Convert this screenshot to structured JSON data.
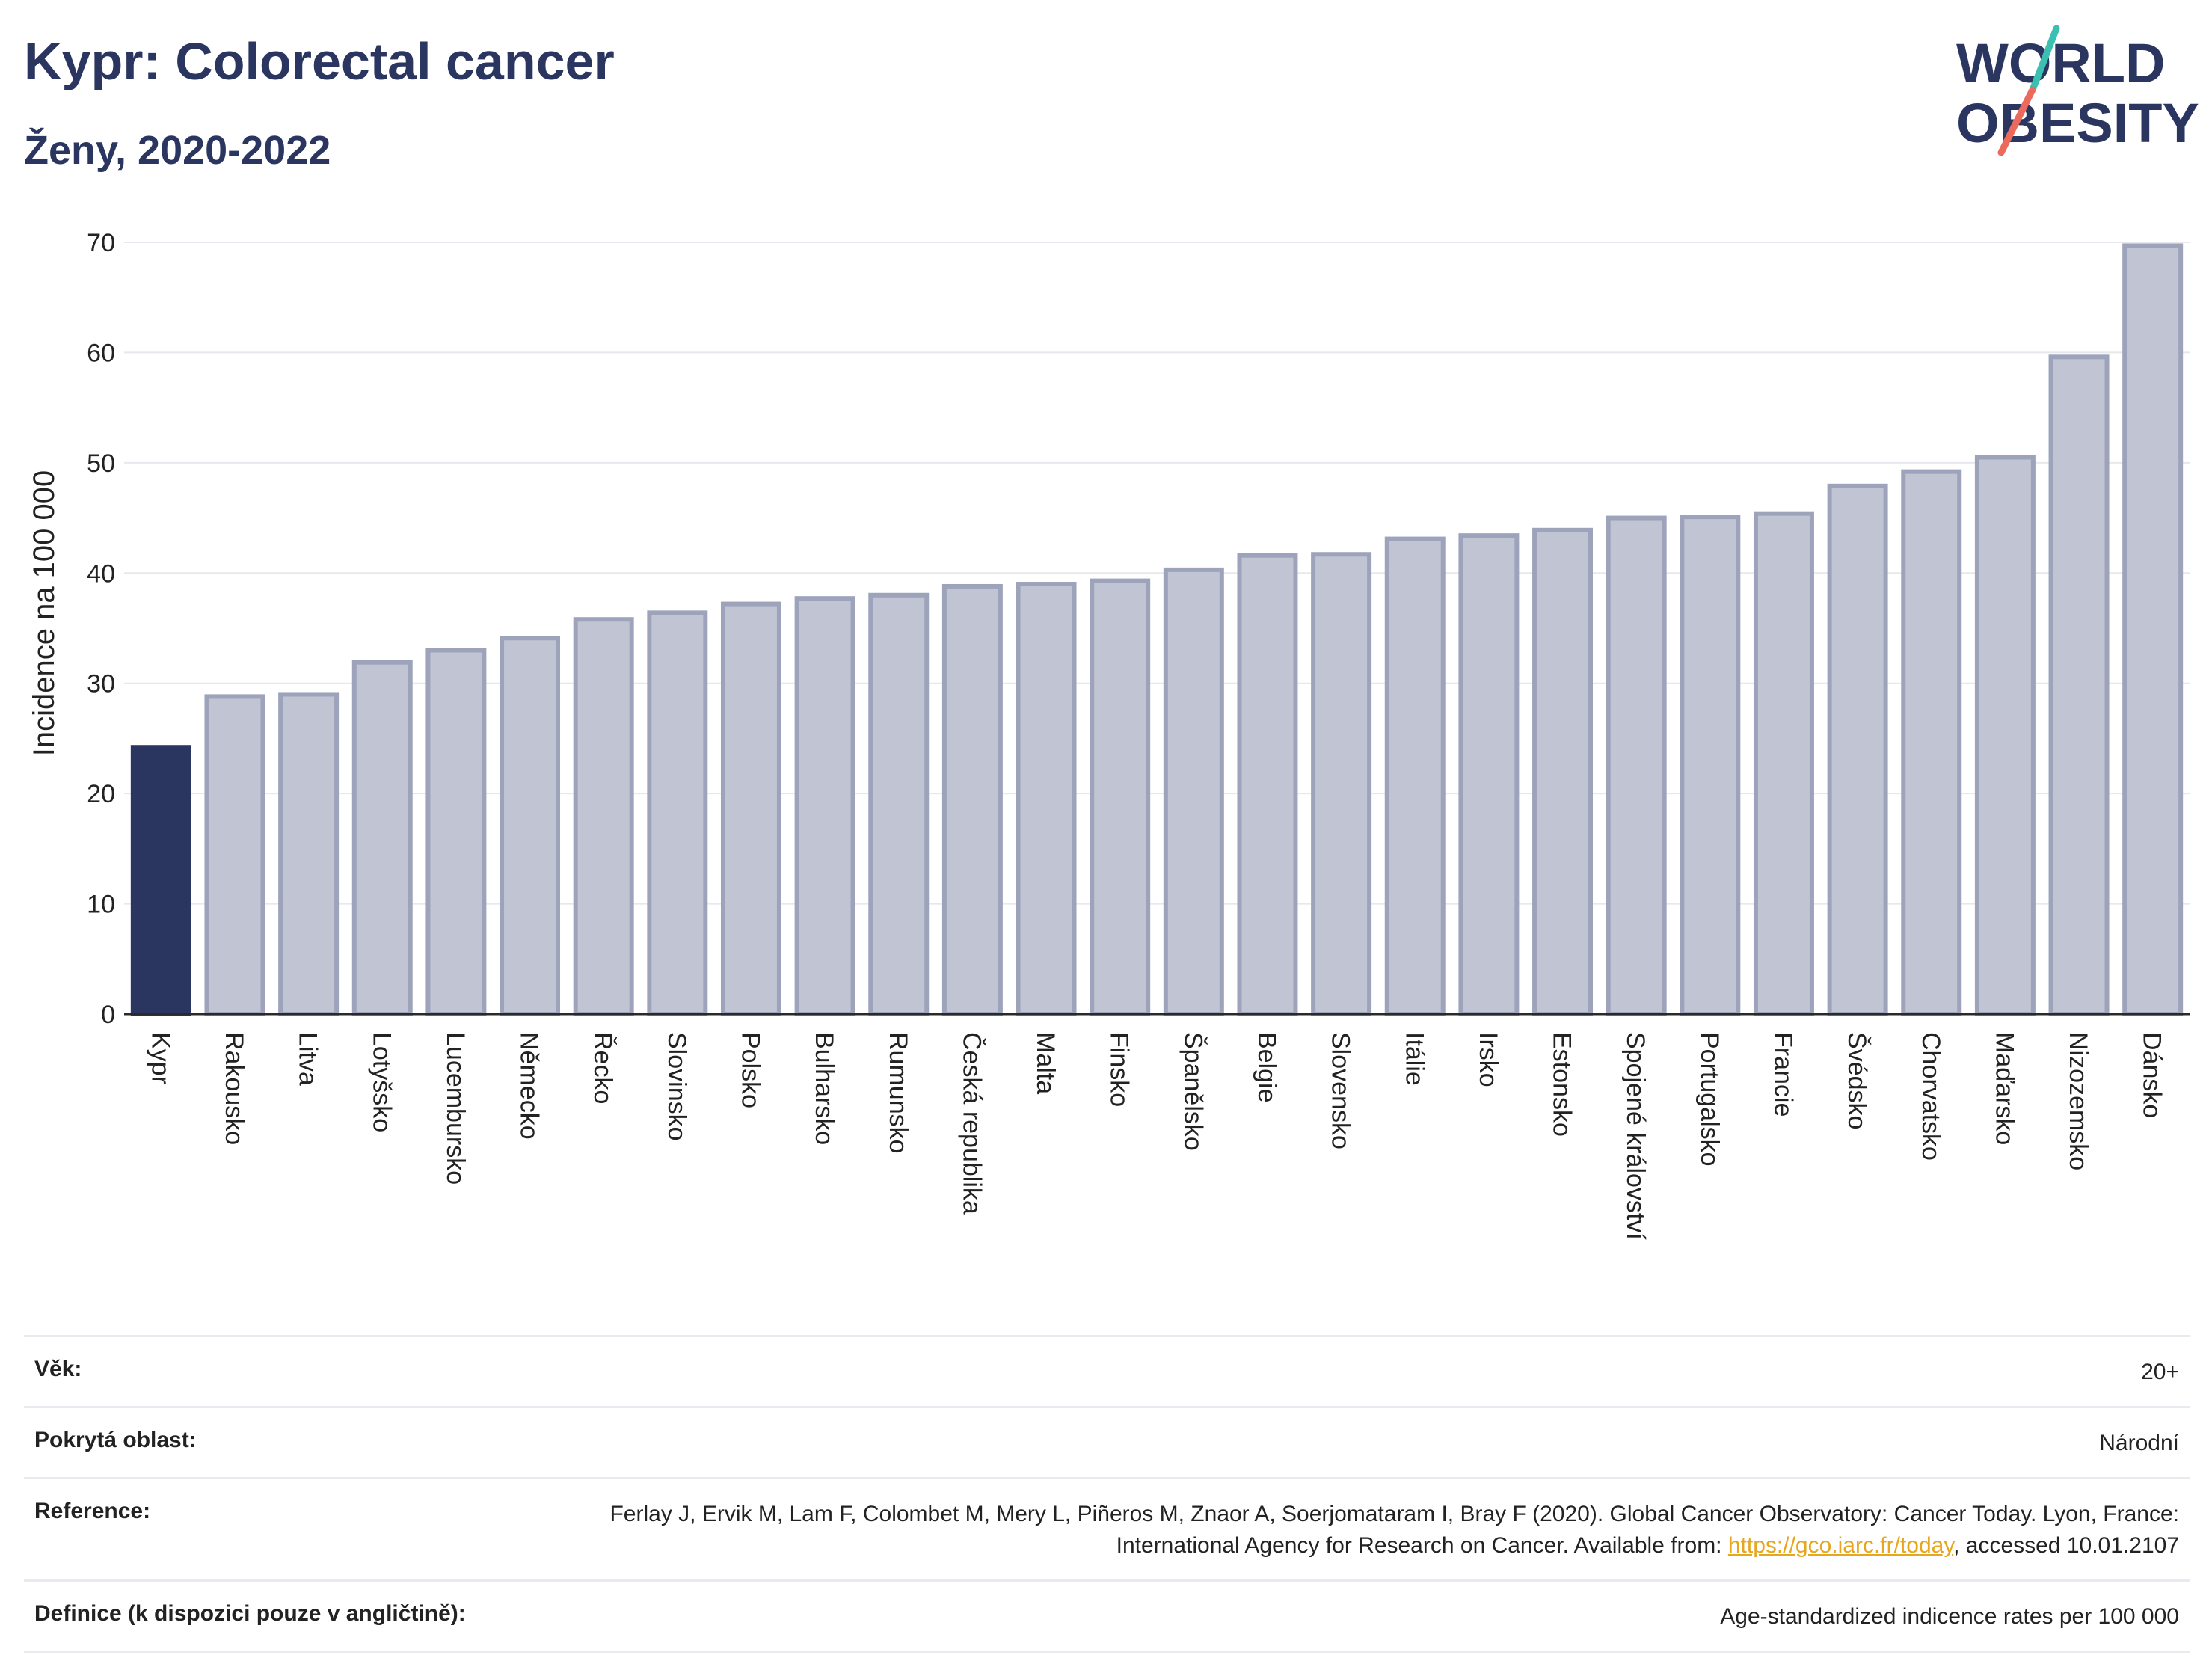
{
  "header": {
    "title": "Kypr: Colorectal cancer",
    "subtitle": "Ženy, 2020-2022"
  },
  "logo": {
    "line1": "WORLD",
    "line2": "OBESITY"
  },
  "colors": {
    "highlight": "#2a3560",
    "bar_fill": "#c1c4d2",
    "bar_stroke": "#9da3ba",
    "grid": "#e6e8ee"
  },
  "chart_data": {
    "type": "bar",
    "title": "Kypr: Colorectal cancer",
    "subtitle": "Ženy, 2020-2022",
    "xlabel": "",
    "ylabel": "Incidence na 100 000",
    "ylim": [
      0,
      70
    ],
    "yticks": [
      0,
      10,
      20,
      30,
      40,
      50,
      60,
      70
    ],
    "grid": true,
    "highlight_category": "Kypr",
    "categories": [
      "Kypr",
      "Rakousko",
      "Litva",
      "Lotyšsko",
      "Lucembursko",
      "Německo",
      "Řecko",
      "Slovinsko",
      "Polsko",
      "Bulharsko",
      "Rumunsko",
      "Česká republika",
      "Malta",
      "Finsko",
      "Španělsko",
      "Belgie",
      "Slovensko",
      "Itálie",
      "Irsko",
      "Estonsko",
      "Spojené království",
      "Portugalsko",
      "Francie",
      "Švédsko",
      "Chorvatsko",
      "Maďarsko",
      "Nizozemsko",
      "Dánsko"
    ],
    "values": [
      24.2,
      28.8,
      29.0,
      31.9,
      33.0,
      34.1,
      35.8,
      36.4,
      37.2,
      37.7,
      38.0,
      38.8,
      39.0,
      39.3,
      40.3,
      41.6,
      41.7,
      43.1,
      43.4,
      43.9,
      45.0,
      45.1,
      45.4,
      47.9,
      49.2,
      50.5,
      59.6,
      69.7
    ]
  },
  "info": {
    "age_label": "Věk:",
    "age_value": "20+",
    "area_label": "Pokrytá oblast:",
    "area_value": "Národní",
    "ref_label": "Reference:",
    "ref_text_1": "Ferlay J, Ervik M, Lam F, Colombet M, Mery L, Piñeros M, Znaor A, Soerjomataram I, Bray F (2020). Global Cancer Observatory: Cancer Today. Lyon, France: International Agency for Research on Cancer. Available from: ",
    "ref_link": "https://gco.iarc.fr/today",
    "ref_text_2": ", accessed 10.01.2107",
    "def_label": "Definice (k dispozici pouze v angličtině):",
    "def_value": "Age-standardized indicence rates per 100 000"
  }
}
